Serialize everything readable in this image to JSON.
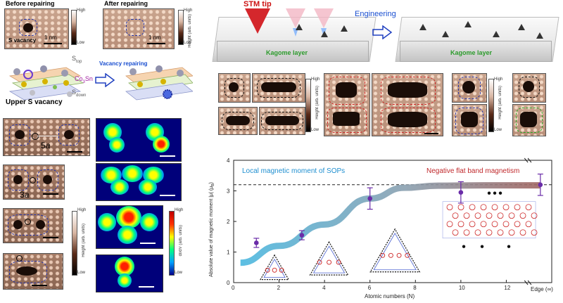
{
  "top_left": {
    "before_title": "Before repairing",
    "after_title": "After repairing",
    "s_vacancy": "S vacancy",
    "scale_1": "1 nm",
    "scale_2": "1 nm",
    "colorbar_high": "High",
    "colorbar_low": "Low",
    "colorbar_unit": "Height (arb. units)"
  },
  "schematic": {
    "s_top": "S",
    "s_top_sub": "top",
    "co3sn": "Co",
    "co3sn_sub": "3",
    "co3sn_tail": "Sn",
    "s_down": "S",
    "s_down_sub": "down",
    "vacancy_repairing": "Vacancy repairing",
    "upper_s_vacancy": "Upper S vacancy"
  },
  "left_panels": {
    "label_5a": "5",
    "label_5a_unit": "a",
    "label_3a": "3",
    "label_3a_unit": "a",
    "cbar_high": "High",
    "cbar_low": "Low",
    "cbar_unit": "Height (arb. units)",
    "cbar2_high": "High",
    "cbar2_low": "Low",
    "cbar2_unit": "dI/dV (arb. units)"
  },
  "top_right": {
    "stm_tip": "STM tip",
    "engineering": "Engineering",
    "kagome_1": "Kagome layer",
    "kagome_2": "Kagome layer"
  },
  "mid_right": {
    "cbar_a_high": "High",
    "cbar_a_low": "Low",
    "cbar_a_unit": "Height (arb. units)",
    "cbar_b_high": "High",
    "cbar_b_low": "Low",
    "cbar_b_unit": "Height (arb. units)"
  },
  "chart_data": {
    "type": "scatter",
    "ylabel": "Absolute value of magnetic moment |μ| (μ",
    "ylabel_sub": "B",
    "ylabel_tail": ")",
    "xlabel": "Atomic numbers (N)",
    "annotation_left": "Local magnetic moment of SOPs",
    "annotation_right": "Negative flat band magnetism",
    "edge_label": "Edge (∞)",
    "x_ticks": [
      "0",
      "2",
      "4",
      "6",
      "8",
      "10",
      "12"
    ],
    "y_ticks": [
      "0",
      "1",
      "2",
      "3",
      "4"
    ],
    "xlim": [
      0,
      14
    ],
    "ylim": [
      0,
      4
    ],
    "dashed_line_y": 3.2,
    "points": [
      {
        "x": 1,
        "y": 1.3,
        "err": 0.15
      },
      {
        "x": 3,
        "y": 1.55,
        "err": 0.15
      },
      {
        "x": 6,
        "y": 2.75,
        "err": 0.35
      },
      {
        "x": 10,
        "y": 2.95,
        "err": 0.35
      },
      {
        "x": "Edge",
        "y": 3.2,
        "err": 0.35
      }
    ],
    "marker_color": "#6a2ca8",
    "trend_color_start": "#4bb8e0",
    "trend_color_end": "#a06560",
    "annotation_left_color": "#1f8fd0",
    "annotation_right_color": "#c0292c"
  }
}
